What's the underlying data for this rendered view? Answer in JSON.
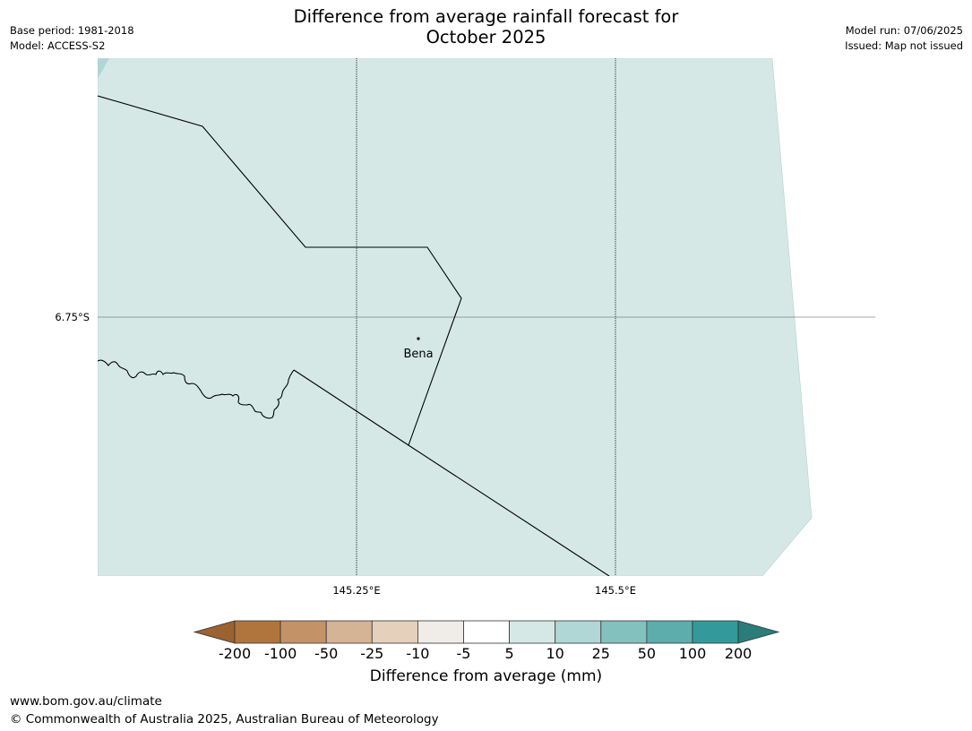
{
  "header": {
    "title_line1": "Difference from average rainfall forecast for",
    "title_line2": "October 2025",
    "base_period": "Base period: 1981-2018",
    "model": "Model: ACCESS-S2",
    "model_run": "Model run: 07/06/2025",
    "issued": "Issued: Map not issued"
  },
  "map": {
    "lat_label": "6.75°S",
    "lon_labels": [
      "145.25°E",
      "145.5°E"
    ],
    "place_name": "Bena",
    "fill_color": "#d5e8e6",
    "corner_color": "#b0d6d5"
  },
  "colorbar": {
    "title": "Difference from average (mm)",
    "tick_labels": [
      "-200",
      "-100",
      "-50",
      "-25",
      "-10",
      "-5",
      "5",
      "10",
      "25",
      "50",
      "100",
      "200"
    ],
    "colors": [
      "#9c6230",
      "#b0753d",
      "#c39367",
      "#d5b395",
      "#e5d0bc",
      "#f0ece8",
      "#ffffff",
      "#d5e8e6",
      "#b0d6d5",
      "#83c1bf",
      "#5dadad",
      "#33999a",
      "#2b7d7c"
    ]
  },
  "footer": {
    "url": "www.bom.gov.au/climate",
    "copyright": "© Commonwealth of Australia 2025, Australian Bureau of Meteorology"
  }
}
